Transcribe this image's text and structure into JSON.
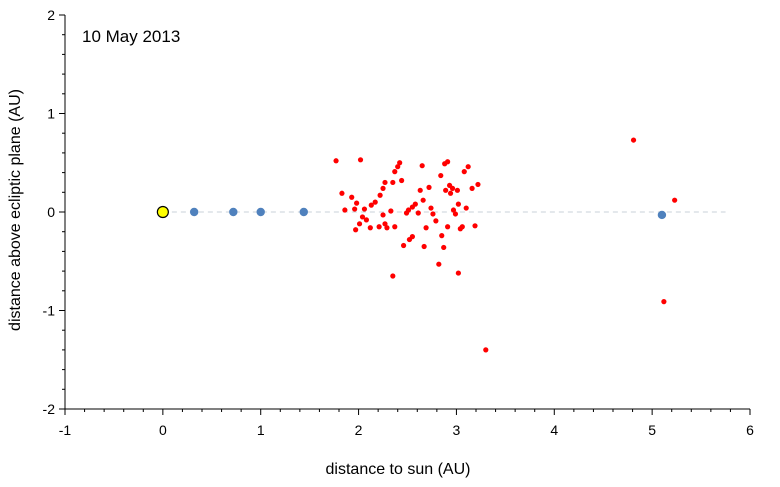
{
  "chart_data": {
    "type": "scatter",
    "title": "",
    "annotation": "10 May 2013",
    "xlabel": "distance to sun (AU)",
    "ylabel": "distance above ecliptic plane (AU)",
    "xlim": [
      -1,
      6
    ],
    "ylim": [
      -2,
      2
    ],
    "x_ticks": [
      -1,
      0,
      1,
      2,
      3,
      4,
      5,
      6
    ],
    "y_ticks": [
      -2,
      -1,
      0,
      1,
      2
    ],
    "x_minor_step": 0.2,
    "y_minor_step": 0.2,
    "grid": false,
    "reference_line": {
      "y": 0,
      "style": "dashed",
      "color": "#c8d0d8"
    },
    "series": [
      {
        "marker": "large-circle",
        "color": "#ffff00",
        "edge_color": "#000000",
        "points": [
          [
            0,
            0
          ]
        ]
      },
      {
        "marker": "circle",
        "color": "#4f81bd",
        "points": [
          [
            0.32,
            0
          ],
          [
            0.72,
            0
          ],
          [
            1.0,
            0
          ],
          [
            1.44,
            0
          ],
          [
            5.1,
            -0.03
          ]
        ]
      },
      {
        "marker": "small-dot",
        "color": "#ff0000",
        "points": [
          [
            1.77,
            0.52
          ],
          [
            1.83,
            0.19
          ],
          [
            1.86,
            0.02
          ],
          [
            1.93,
            0.15
          ],
          [
            1.96,
            0.03
          ],
          [
            1.97,
            -0.18
          ],
          [
            1.98,
            0.09
          ],
          [
            2.01,
            -0.12
          ],
          [
            2.02,
            0.53
          ],
          [
            2.04,
            -0.05
          ],
          [
            2.06,
            0.03
          ],
          [
            2.08,
            -0.08
          ],
          [
            2.12,
            -0.16
          ],
          [
            2.13,
            0.07
          ],
          [
            2.17,
            0.1
          ],
          [
            2.21,
            -0.15
          ],
          [
            2.22,
            0.17
          ],
          [
            2.25,
            0.24
          ],
          [
            2.25,
            -0.03
          ],
          [
            2.27,
            0.3
          ],
          [
            2.27,
            -0.12
          ],
          [
            2.29,
            -0.16
          ],
          [
            2.33,
            0.01
          ],
          [
            2.35,
            0.3
          ],
          [
            2.35,
            -0.65
          ],
          [
            2.37,
            0.41
          ],
          [
            2.37,
            -0.15
          ],
          [
            2.4,
            0.46
          ],
          [
            2.42,
            0.5
          ],
          [
            2.44,
            0.32
          ],
          [
            2.46,
            -0.34
          ],
          [
            2.49,
            -0.01
          ],
          [
            2.51,
            0.02
          ],
          [
            2.52,
            -0.28
          ],
          [
            2.55,
            -0.25
          ],
          [
            2.55,
            0.05
          ],
          [
            2.58,
            0.08
          ],
          [
            2.61,
            -0.01
          ],
          [
            2.63,
            0.22
          ],
          [
            2.65,
            0.47
          ],
          [
            2.66,
            0.12
          ],
          [
            2.67,
            -0.35
          ],
          [
            2.69,
            -0.16
          ],
          [
            2.72,
            0.25
          ],
          [
            2.74,
            0.04
          ],
          [
            2.76,
            -0.02
          ],
          [
            2.79,
            -0.09
          ],
          [
            2.82,
            -0.53
          ],
          [
            2.84,
            0.37
          ],
          [
            2.85,
            -0.24
          ],
          [
            2.87,
            -0.36
          ],
          [
            2.88,
            0.49
          ],
          [
            2.89,
            0.22
          ],
          [
            2.91,
            0.51
          ],
          [
            2.91,
            -0.15
          ],
          [
            2.93,
            0.27
          ],
          [
            2.94,
            0.19
          ],
          [
            2.96,
            0.24
          ],
          [
            2.97,
            0.02
          ],
          [
            2.99,
            -0.02
          ],
          [
            3.01,
            0.22
          ],
          [
            3.02,
            0.08
          ],
          [
            3.02,
            -0.62
          ],
          [
            3.04,
            -0.17
          ],
          [
            3.06,
            -0.15
          ],
          [
            3.08,
            0.41
          ],
          [
            3.1,
            0.04
          ],
          [
            3.12,
            0.46
          ],
          [
            3.16,
            0.24
          ],
          [
            3.19,
            -0.14
          ],
          [
            3.22,
            0.28
          ],
          [
            3.3,
            -1.4
          ],
          [
            4.81,
            0.73
          ],
          [
            5.12,
            -0.91
          ],
          [
            5.23,
            0.12
          ]
        ]
      }
    ]
  }
}
